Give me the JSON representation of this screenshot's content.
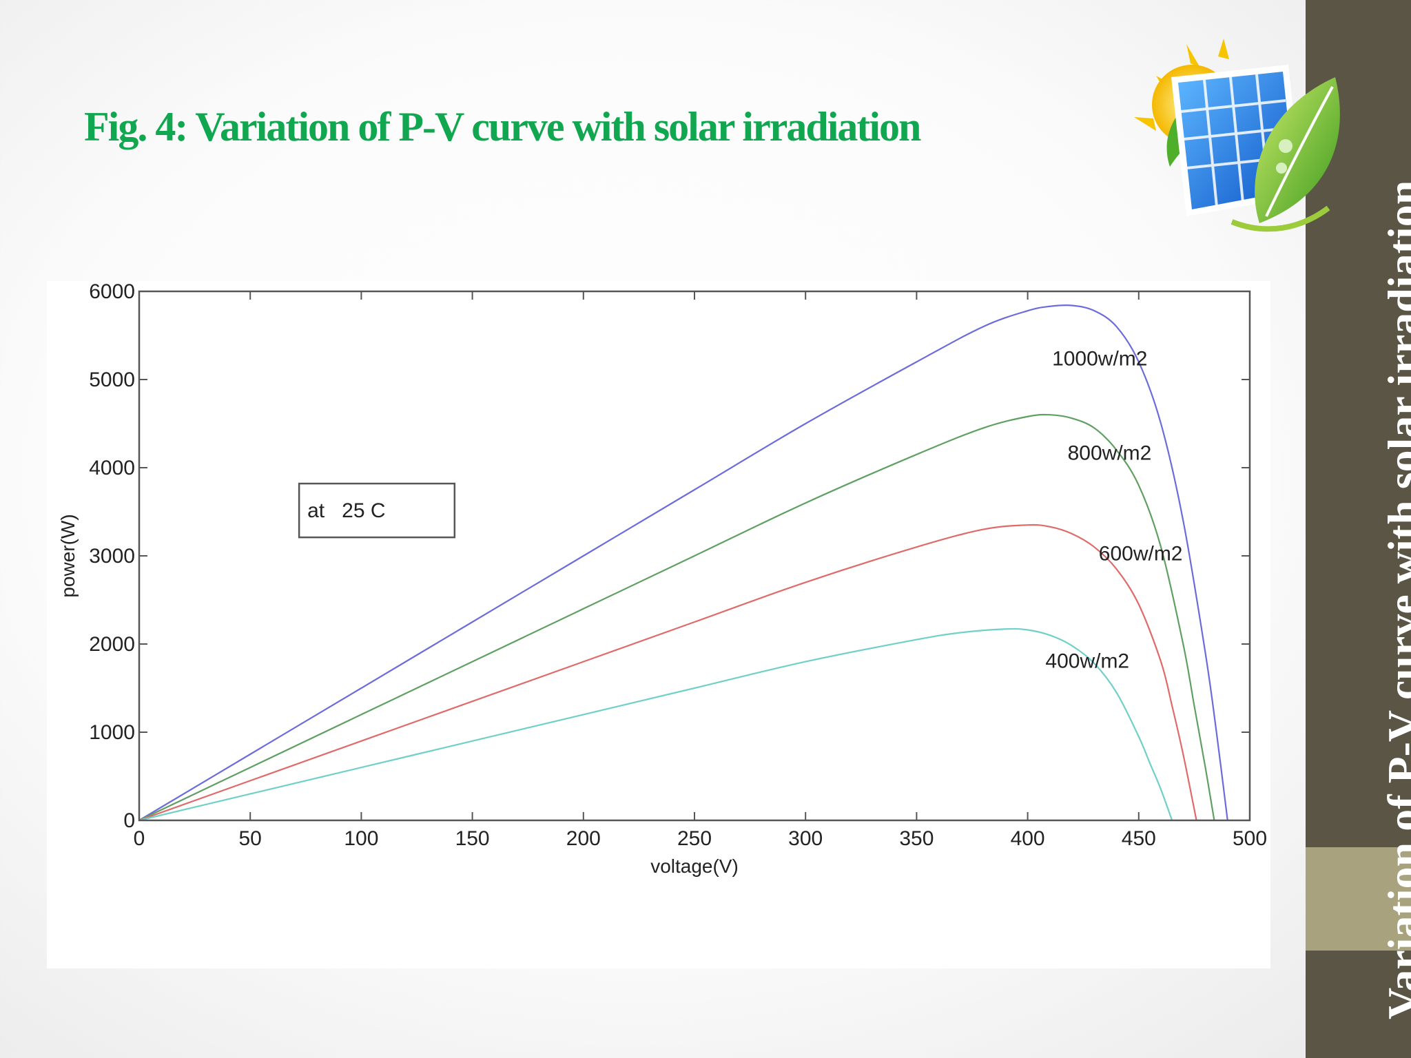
{
  "slide": {
    "title": "Fig. 4: Variation of P-V curve with solar irradiation",
    "side_title": "Variation of P-V curve with solar irradiation"
  },
  "colors": {
    "title": "#11a650",
    "sidebar": "#5b5545",
    "sidebar_accent": "#a8a27f"
  },
  "chart_data": {
    "type": "line",
    "title": "",
    "xlabel": "voltage(V)",
    "ylabel": "power(W)",
    "xlim": [
      0,
      500
    ],
    "ylim": [
      0,
      6000
    ],
    "xticks": [
      0,
      50,
      100,
      150,
      200,
      250,
      300,
      350,
      400,
      450,
      500
    ],
    "yticks": [
      0,
      1000,
      2000,
      3000,
      4000,
      5000,
      6000
    ],
    "grid": false,
    "annotation_box": "at   25 C",
    "series": [
      {
        "name": "1000w/m2",
        "color": "#6b6bdc",
        "x": [
          0,
          50,
          100,
          150,
          200,
          250,
          300,
          350,
          380,
          400,
          410,
          420,
          430,
          440,
          450,
          460,
          470,
          480,
          485,
          490
        ],
        "y": [
          0,
          750,
          1500,
          2250,
          3000,
          3750,
          4500,
          5200,
          5600,
          5780,
          5830,
          5840,
          5780,
          5600,
          5200,
          4500,
          3400,
          1900,
          1000,
          0
        ]
      },
      {
        "name": "800w/m2",
        "color": "#5fa062",
        "x": [
          0,
          50,
          100,
          150,
          200,
          250,
          300,
          350,
          380,
          400,
          410,
          420,
          430,
          440,
          450,
          460,
          470,
          475,
          480,
          484
        ],
        "y": [
          0,
          600,
          1200,
          1800,
          2400,
          3000,
          3600,
          4150,
          4450,
          4580,
          4600,
          4560,
          4450,
          4200,
          3800,
          3100,
          2000,
          1300,
          600,
          0
        ]
      },
      {
        "name": "600w/m2",
        "color": "#e06a6a",
        "x": [
          0,
          50,
          100,
          150,
          200,
          250,
          300,
          350,
          380,
          400,
          410,
          420,
          430,
          440,
          450,
          460,
          465,
          470,
          476
        ],
        "y": [
          0,
          450,
          900,
          1350,
          1800,
          2250,
          2700,
          3100,
          3300,
          3350,
          3330,
          3250,
          3100,
          2850,
          2450,
          1800,
          1300,
          750,
          0
        ]
      },
      {
        "name": "400w/m2",
        "color": "#6fd0c8",
        "x": [
          0,
          50,
          100,
          150,
          200,
          250,
          300,
          350,
          370,
          390,
          400,
          410,
          420,
          430,
          440,
          450,
          455,
          460,
          465
        ],
        "y": [
          0,
          300,
          600,
          900,
          1200,
          1500,
          1800,
          2050,
          2130,
          2170,
          2160,
          2100,
          1980,
          1780,
          1450,
          950,
          650,
          350,
          0
        ]
      }
    ],
    "curve_labels": [
      {
        "text": "1000w/m2",
        "x": 411,
        "y": 5160
      },
      {
        "text": "800w/m2",
        "x": 418,
        "y": 4090
      },
      {
        "text": "600w/m2",
        "x": 432,
        "y": 2950
      },
      {
        "text": "400w/m2",
        "x": 408,
        "y": 1730
      }
    ]
  }
}
